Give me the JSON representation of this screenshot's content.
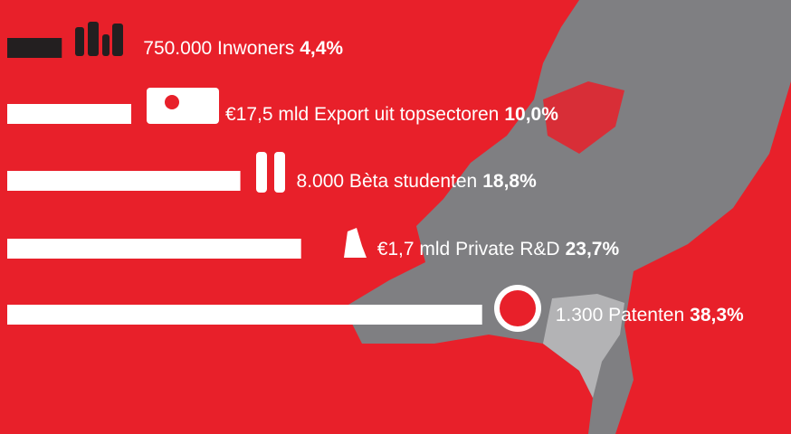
{
  "chart_data": {
    "type": "bar",
    "orientation": "horizontal",
    "categories": [
      "750.000 Inwoners",
      "€17,5 mld Export uit topsectoren",
      "8.000 Bèta studenten",
      "€1,7 mld Private R&D",
      "1.300 Patenten"
    ],
    "values": [
      4.4,
      10.0,
      18.8,
      23.7,
      38.3
    ],
    "value_labels": [
      "4,4%",
      "10,0%",
      "18,8%",
      "23,7%",
      "38,3%"
    ],
    "colors": [
      "#231f20",
      "#ffffff",
      "#ffffff",
      "#ffffff",
      "#ffffff"
    ]
  }
}
